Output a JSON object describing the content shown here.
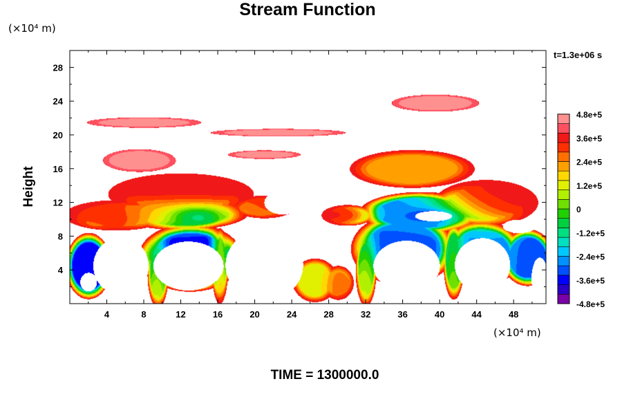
{
  "chart_data": {
    "type": "heatmap",
    "title": "Stream Function",
    "ylabel": "Height",
    "xlabel": "",
    "x_unit_label": "(×10⁴ m)",
    "y_unit_label": "(×10⁴ m)",
    "timestamp": "t=1.3e+06 s",
    "footer": "TIME = 1300000.0",
    "xlim": [
      0,
      51.5
    ],
    "ylim": [
      0,
      30
    ],
    "x_ticks": [
      {
        "value": 4,
        "label": "4"
      },
      {
        "value": 8,
        "label": "8"
      },
      {
        "value": 12,
        "label": "12"
      },
      {
        "value": 16,
        "label": "16"
      },
      {
        "value": 20,
        "label": "20"
      },
      {
        "value": 24,
        "label": "24"
      },
      {
        "value": 28,
        "label": "28"
      },
      {
        "value": 32,
        "label": "32"
      },
      {
        "value": 36,
        "label": "36"
      },
      {
        "value": 40,
        "label": "40"
      },
      {
        "value": 44,
        "label": "44"
      },
      {
        "value": 48,
        "label": "48"
      }
    ],
    "y_ticks": [
      {
        "value": 4,
        "label": "4"
      },
      {
        "value": 8,
        "label": "8"
      },
      {
        "value": 12,
        "label": "12"
      },
      {
        "value": 16,
        "label": "16"
      },
      {
        "value": 20,
        "label": "20"
      },
      {
        "value": 24,
        "label": "24"
      },
      {
        "value": 28,
        "label": "28"
      }
    ],
    "colorbar": {
      "range": [
        -480000,
        480000
      ],
      "ticks": [
        {
          "value": 480000,
          "label": "4.8e+5"
        },
        {
          "value": 360000,
          "label": "3.6e+5"
        },
        {
          "value": 240000,
          "label": "2.4e+5"
        },
        {
          "value": 120000,
          "label": "1.2e+5"
        },
        {
          "value": 0,
          "label": "0"
        },
        {
          "value": -120000,
          "label": "-1.2e+5"
        },
        {
          "value": -240000,
          "label": "-2.4e+5"
        },
        {
          "value": -360000,
          "label": "-3.6e+5"
        },
        {
          "value": -480000,
          "label": "-4.8e+5"
        }
      ],
      "colors": [
        "#7a00a8",
        "#2a00c8",
        "#0000ff",
        "#0050ff",
        "#0090ff",
        "#00c8ff",
        "#00e0c0",
        "#00e080",
        "#00d040",
        "#20d000",
        "#70e000",
        "#b0f000",
        "#e0f000",
        "#ffd800",
        "#ffa000",
        "#ff7000",
        "#ff3000",
        "#f01818",
        "#ff5060",
        "#ff9090"
      ]
    },
    "blobs": [
      {
        "x": 7.5,
        "y": 17.0,
        "rx": 3.5,
        "ry": 1.2,
        "v": 480000
      },
      {
        "x": 12,
        "y": 13.0,
        "rx": 7,
        "ry": 2.2,
        "v": 380000
      },
      {
        "x": 12,
        "y": 10.8,
        "rx": 6.5,
        "ry": 1.8,
        "v": 60000
      },
      {
        "x": 13.5,
        "y": 10.6,
        "rx": 2.5,
        "ry": 1.0,
        "v": -300000
      },
      {
        "x": 5,
        "y": 10.5,
        "rx": 5,
        "ry": 1.6,
        "v": 360000
      },
      {
        "x": 21,
        "y": 11.5,
        "rx": 3,
        "ry": 1.2,
        "v": 300000
      },
      {
        "x": 37,
        "y": 16.0,
        "rx": 6,
        "ry": 2.0,
        "v": 220000
      },
      {
        "x": 38,
        "y": 10.8,
        "rx": 6,
        "ry": 2.2,
        "v": -250000
      },
      {
        "x": 39,
        "y": 10.5,
        "rx": 2.5,
        "ry": 0.7,
        "v": -480000
      },
      {
        "x": 45,
        "y": 12,
        "rx": 5,
        "ry": 2.4,
        "v": 360000
      },
      {
        "x": 30,
        "y": 10.5,
        "rx": 2.5,
        "ry": 1.1,
        "v": 380000
      },
      {
        "x": 26.5,
        "y": 2.8,
        "rx": 2.2,
        "ry": 2.3,
        "v": 120000
      },
      {
        "x": 29,
        "y": 2.5,
        "rx": 1.5,
        "ry": 1.8,
        "v": 300000
      },
      {
        "x": 13,
        "y": 5.5,
        "rx": 5,
        "ry": 3.6,
        "v": -360000
      },
      {
        "x": 36,
        "y": 6.5,
        "rx": 5,
        "ry": 3.8,
        "v": -300000
      },
      {
        "x": 44.5,
        "y": 6,
        "rx": 3.8,
        "ry": 3.5,
        "v": -250000
      },
      {
        "x": 2,
        "y": 4.5,
        "rx": 2.2,
        "ry": 3.5,
        "v": -360000
      },
      {
        "x": 49.5,
        "y": 5.5,
        "rx": 2.5,
        "ry": 3.0,
        "v": -300000
      },
      {
        "x": 9.5,
        "y": 3.5,
        "rx": 1.0,
        "ry": 3.5,
        "v": 150000
      },
      {
        "x": 16.2,
        "y": 4.5,
        "rx": 0.8,
        "ry": 4.0,
        "v": 300000
      },
      {
        "x": 32,
        "y": 4.0,
        "rx": 1.0,
        "ry": 3.8,
        "v": 120000
      },
      {
        "x": 41.5,
        "y": 5.0,
        "rx": 1.0,
        "ry": 4.0,
        "v": 100000
      },
      {
        "x": 8,
        "y": 21.5,
        "rx": 5.5,
        "ry": 0.55,
        "v": 460000
      },
      {
        "x": 22.5,
        "y": 20.3,
        "rx": 6.5,
        "ry": 0.4,
        "v": 460000
      },
      {
        "x": 21,
        "y": 17.7,
        "rx": 3.5,
        "ry": 0.45,
        "v": 460000
      },
      {
        "x": 39.5,
        "y": 23.8,
        "rx": 4.2,
        "ry": 0.9,
        "v": 480000
      }
    ],
    "white_regions": [
      {
        "x": 12.8,
        "y": 4.5,
        "rx": 3.8,
        "ry": 2.9
      },
      {
        "x": 36.4,
        "y": 4.5,
        "rx": 3.6,
        "ry": 3.0
      },
      {
        "x": 44.6,
        "y": 4.6,
        "rx": 3.0,
        "ry": 3.2
      },
      {
        "x": 5.5,
        "y": 4.5,
        "rx": 3.0,
        "ry": 3.4
      },
      {
        "x": 2.0,
        "y": 2.6,
        "rx": 0.9,
        "ry": 1.1
      },
      {
        "x": 21.0,
        "y": 4.6,
        "rx": 4.2,
        "ry": 4.2
      },
      {
        "x": 50.8,
        "y": 3.0,
        "rx": 0.9,
        "ry": 2.5
      },
      {
        "x": 39.3,
        "y": 10.4,
        "rx": 2.0,
        "ry": 0.6
      },
      {
        "x": 48.6,
        "y": 9.2,
        "rx": 1.8,
        "ry": 0.8
      },
      {
        "x": 23.0,
        "y": 12.0,
        "rx": 2.0,
        "ry": 1.4
      }
    ]
  }
}
